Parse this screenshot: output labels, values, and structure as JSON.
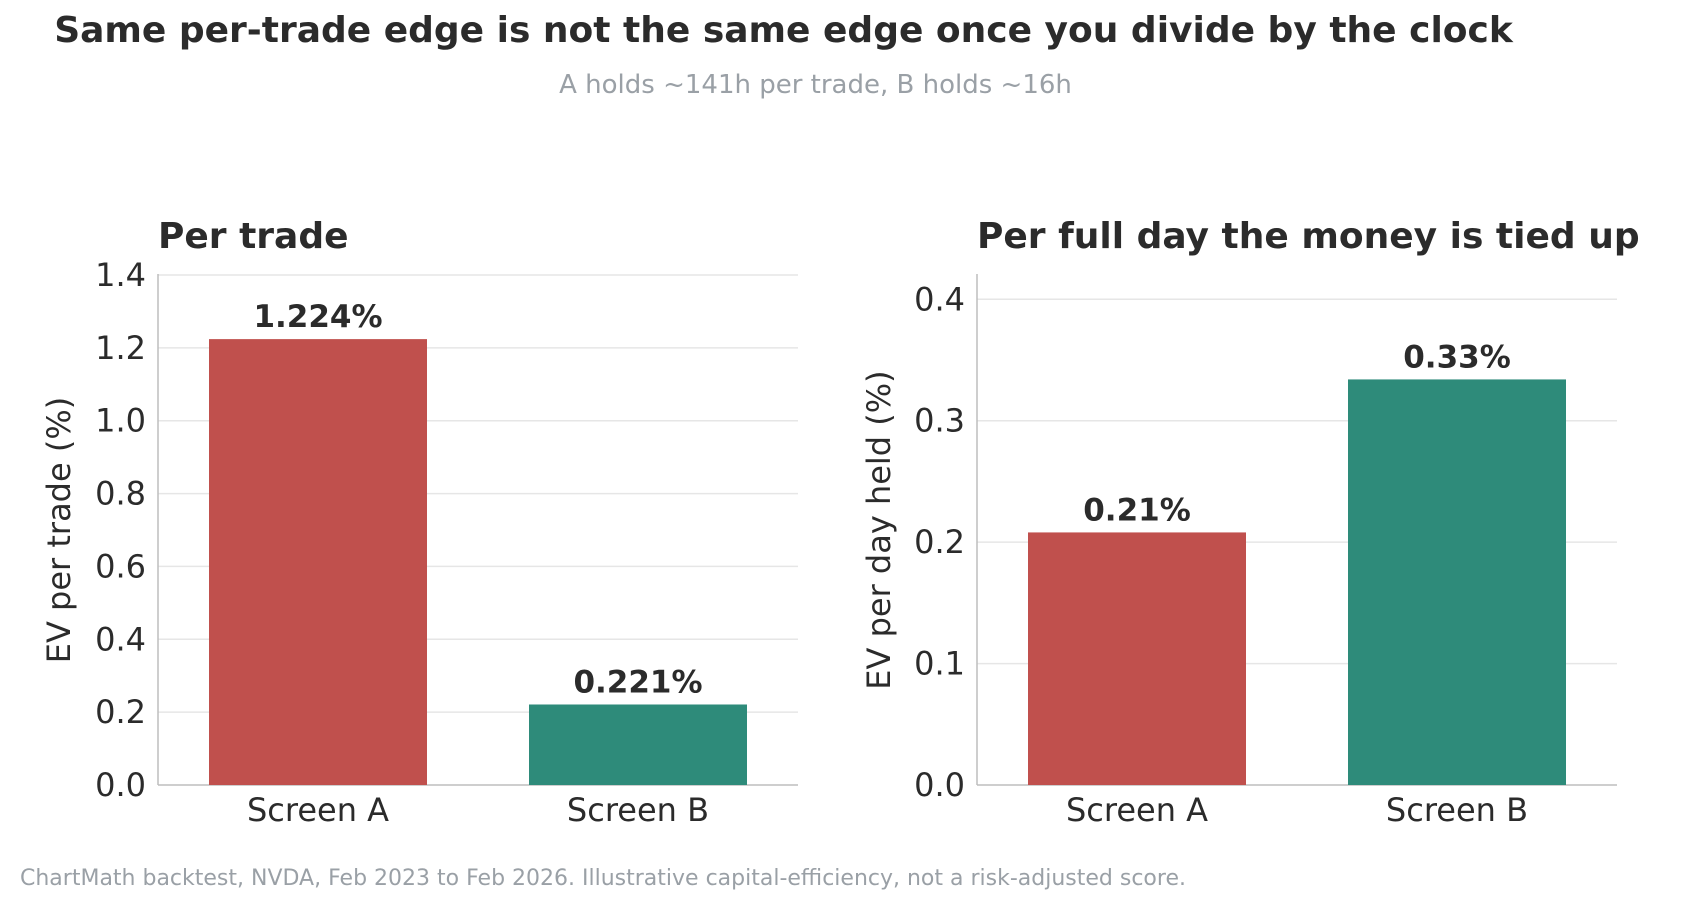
{
  "title": "Same per-trade edge is not the same edge once you divide by the clock",
  "subtitle": "A holds ~141h per trade, B holds ~16h",
  "footnote": "ChartMath backtest, NVDA, Feb 2023 to Feb 2026. Illustrative capital-efficiency, not a risk-adjusted score.",
  "chart_data": [
    {
      "type": "bar",
      "title": "Per trade",
      "ylabel": "EV per trade (%)",
      "categories": [
        "Screen A",
        "Screen B"
      ],
      "values": [
        1.224,
        0.221
      ],
      "data_labels": [
        "1.224%",
        "0.221%"
      ],
      "colors": [
        "#c0504d",
        "#2e8b7a"
      ],
      "ylim": [
        0,
        1.4
      ],
      "yticks": [
        0.0,
        0.2,
        0.4,
        0.6,
        0.8,
        1.0,
        1.2,
        1.4
      ],
      "ytick_labels": [
        "0.0",
        "0.2",
        "0.4",
        "0.6",
        "0.8",
        "1.0",
        "1.2",
        "1.4"
      ],
      "grid": true
    },
    {
      "type": "bar",
      "title": "Per full day the money is tied up",
      "ylabel": "EV per day held (%)",
      "categories": [
        "Screen A",
        "Screen B"
      ],
      "values": [
        0.208,
        0.334
      ],
      "data_labels": [
        "0.21%",
        "0.33%"
      ],
      "colors": [
        "#c0504d",
        "#2e8b7a"
      ],
      "ylim": [
        0,
        0.42
      ],
      "yticks": [
        0.0,
        0.1,
        0.2,
        0.3,
        0.4
      ],
      "ytick_labels": [
        "0.0",
        "0.1",
        "0.2",
        "0.3",
        "0.4"
      ],
      "grid": true
    }
  ]
}
